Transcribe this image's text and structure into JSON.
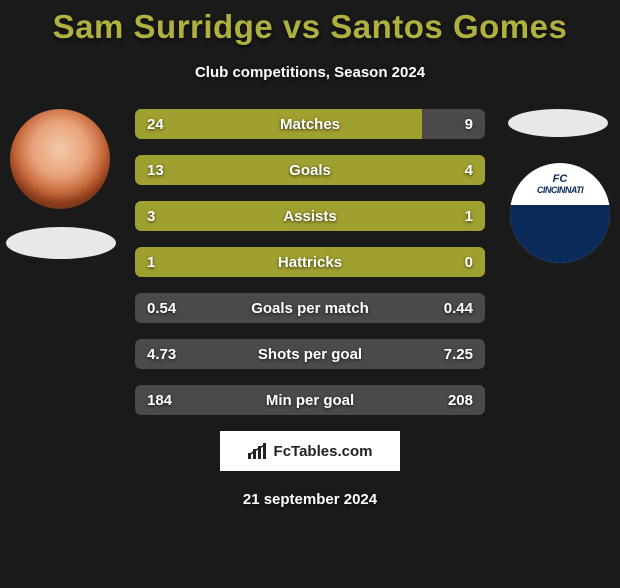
{
  "title_color": "#b0b040",
  "background_color": "#1a1a1a",
  "title": "Sam Surridge vs Santos Gomes",
  "subtitle": "Club competitions, Season 2024",
  "date": "21 september 2024",
  "branding": {
    "text": "FcTables.com"
  },
  "fill_color": "#a0a030",
  "empty_color": "#4a4a4a",
  "club_logo": {
    "line1": "FC",
    "line2": "CINCINNATI"
  },
  "bars": [
    {
      "label": "Matches",
      "left": "24",
      "right": "9",
      "left_pct": 82,
      "right_pct": 0
    },
    {
      "label": "Goals",
      "left": "13",
      "right": "4",
      "left_pct": 100,
      "right_pct": 0
    },
    {
      "label": "Assists",
      "left": "3",
      "right": "1",
      "left_pct": 100,
      "right_pct": 0
    },
    {
      "label": "Hattricks",
      "left": "1",
      "right": "0",
      "left_pct": 100,
      "right_pct": 0
    },
    {
      "label": "Goals per match",
      "left": "0.54",
      "right": "0.44",
      "left_pct": 0,
      "right_pct": 0
    },
    {
      "label": "Shots per goal",
      "left": "4.73",
      "right": "7.25",
      "left_pct": 0,
      "right_pct": 0
    },
    {
      "label": "Min per goal",
      "left": "184",
      "right": "208",
      "left_pct": 0,
      "right_pct": 0
    }
  ]
}
